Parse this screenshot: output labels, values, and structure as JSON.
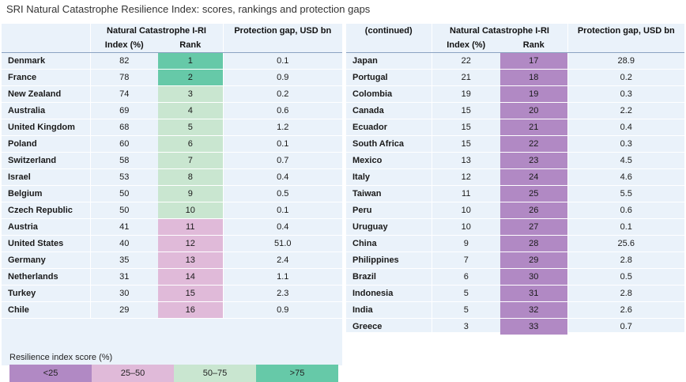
{
  "title": "SRI Natural Catastrophe Resilience Index: scores, rankings and protection gaps",
  "left": {
    "header_group": "Natural Catastrophe I-RI",
    "header_index": "Index (%)",
    "header_rank": "Rank",
    "header_gap": "Protection gap, USD bn",
    "rows": [
      {
        "country": "Denmark",
        "index": "82",
        "rank": "1",
        "gap": "0.1",
        "band": 4
      },
      {
        "country": "France",
        "index": "78",
        "rank": "2",
        "gap": "0.9",
        "band": 4
      },
      {
        "country": "New Zealand",
        "index": "74",
        "rank": "3",
        "gap": "0.2",
        "band": 3
      },
      {
        "country": "Australia",
        "index": "69",
        "rank": "4",
        "gap": "0.6",
        "band": 3
      },
      {
        "country": "United Kingdom",
        "index": "68",
        "rank": "5",
        "gap": "1.2",
        "band": 3
      },
      {
        "country": "Poland",
        "index": "60",
        "rank": "6",
        "gap": "0.1",
        "band": 3
      },
      {
        "country": "Switzerland",
        "index": "58",
        "rank": "7",
        "gap": "0.7",
        "band": 3
      },
      {
        "country": "Israel",
        "index": "53",
        "rank": "8",
        "gap": "0.4",
        "band": 3
      },
      {
        "country": "Belgium",
        "index": "50",
        "rank": "9",
        "gap": "0.5",
        "band": 3
      },
      {
        "country": "Czech Republic",
        "index": "50",
        "rank": "10",
        "gap": "0.1",
        "band": 3
      },
      {
        "country": "Austria",
        "index": "41",
        "rank": "11",
        "gap": "0.4",
        "band": 2
      },
      {
        "country": "United States",
        "index": "40",
        "rank": "12",
        "gap": "51.0",
        "band": 2
      },
      {
        "country": "Germany",
        "index": "35",
        "rank": "13",
        "gap": "2.4",
        "band": 2
      },
      {
        "country": "Netherlands",
        "index": "31",
        "rank": "14",
        "gap": "1.1",
        "band": 2
      },
      {
        "country": "Turkey",
        "index": "30",
        "rank": "15",
        "gap": "2.3",
        "band": 2
      },
      {
        "country": "Chile",
        "index": "29",
        "rank": "16",
        "gap": "0.9",
        "band": 2
      }
    ]
  },
  "right": {
    "header_continued": "(continued)",
    "header_group": "Natural Catastrophe I-RI",
    "header_index": "Index (%)",
    "header_rank": "Rank",
    "header_gap": "Protection gap, USD bn",
    "rows": [
      {
        "country": "Japan",
        "index": "22",
        "rank": "17",
        "gap": "28.9",
        "band": 1
      },
      {
        "country": "Portugal",
        "index": "21",
        "rank": "18",
        "gap": "0.2",
        "band": 1
      },
      {
        "country": "Colombia",
        "index": "19",
        "rank": "19",
        "gap": "0.3",
        "band": 1
      },
      {
        "country": "Canada",
        "index": "15",
        "rank": "20",
        "gap": "2.2",
        "band": 1
      },
      {
        "country": "Ecuador",
        "index": "15",
        "rank": "21",
        "gap": "0.4",
        "band": 1
      },
      {
        "country": "South Africa",
        "index": "15",
        "rank": "22",
        "gap": "0.3",
        "band": 1
      },
      {
        "country": "Mexico",
        "index": "13",
        "rank": "23",
        "gap": "4.5",
        "band": 1
      },
      {
        "country": "Italy",
        "index": "12",
        "rank": "24",
        "gap": "4.6",
        "band": 1
      },
      {
        "country": "Taiwan",
        "index": "11",
        "rank": "25",
        "gap": "5.5",
        "band": 1
      },
      {
        "country": "Peru",
        "index": "10",
        "rank": "26",
        "gap": "0.6",
        "band": 1
      },
      {
        "country": "Uruguay",
        "index": "10",
        "rank": "27",
        "gap": "0.1",
        "band": 1
      },
      {
        "country": "China",
        "index": "9",
        "rank": "28",
        "gap": "25.6",
        "band": 1
      },
      {
        "country": "Philippines",
        "index": "7",
        "rank": "29",
        "gap": "2.8",
        "band": 1
      },
      {
        "country": "Brazil",
        "index": "6",
        "rank": "30",
        "gap": "0.5",
        "band": 1
      },
      {
        "country": "Indonesia",
        "index": "5",
        "rank": "31",
        "gap": "2.8",
        "band": 1
      },
      {
        "country": "India",
        "index": "5",
        "rank": "32",
        "gap": "2.6",
        "band": 1
      },
      {
        "country": "Greece",
        "index": "3",
        "rank": "33",
        "gap": "0.7",
        "band": 1
      }
    ]
  },
  "legend": {
    "title": "Resilience index score (%)",
    "items": [
      {
        "label": "<25",
        "color": "#b189c4"
      },
      {
        "label": "25–50",
        "color": "#e0bad9"
      },
      {
        "label": "50–75",
        "color": "#c9e6d0"
      },
      {
        "label": ">75",
        "color": "#66c9a8"
      }
    ]
  }
}
